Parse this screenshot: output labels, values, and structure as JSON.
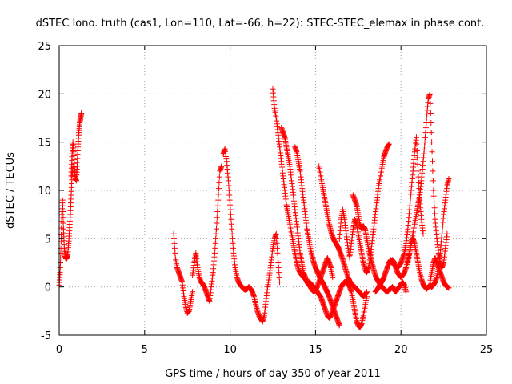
{
  "chart_data": {
    "type": "scatter",
    "title": "dSTEC Iono. truth (cas1, Lon=110, Lat=-66, h=22): STEC-STEC_elemax in phase cont.",
    "xlabel": "GPS time / hours of day 350 of year 2011",
    "ylabel": "dSTEC  / TECUs",
    "xlim": [
      0,
      25
    ],
    "ylim": [
      -5,
      25
    ],
    "xticks": [
      "0",
      "5",
      "10",
      "15",
      "20",
      "25"
    ],
    "yticks": [
      "-5",
      "0",
      "5",
      "10",
      "15",
      "20",
      "25"
    ],
    "grid": true,
    "marker": "+",
    "marker_color": "#ff0000",
    "series": [
      {
        "name": "",
        "x": [
          0.0,
          0.05,
          0.1,
          0.15,
          0.2,
          0.25,
          0.3,
          0.35,
          0.4,
          0.45,
          0.5,
          0.55,
          0.6,
          0.65,
          0.7,
          0.75,
          0.8
        ],
        "y": [
          0.2,
          1.5,
          4.0,
          7.5,
          9.0,
          6.0,
          4.0,
          3.2,
          2.9,
          3.0,
          3.4,
          4.5,
          5.8,
          7.5,
          9.5,
          11.5,
          12.5
        ]
      },
      {
        "name": "",
        "x": [
          0.7,
          0.75,
          0.8,
          0.85,
          0.9,
          0.95,
          1.0,
          1.05,
          1.1,
          1.15,
          1.2,
          1.25,
          1.3
        ],
        "y": [
          11.5,
          13.5,
          15.0,
          14.0,
          12.0,
          11.3,
          11.0,
          12.5,
          14.5,
          16.0,
          17.0,
          17.5,
          18.0
        ]
      },
      {
        "name": "",
        "x": [
          6.7,
          6.8,
          6.9,
          7.0,
          7.1,
          7.2,
          7.3,
          7.4,
          7.5,
          7.6,
          7.7,
          7.8
        ],
        "y": [
          5.5,
          3.0,
          2.0,
          1.5,
          1.0,
          0.5,
          -1.0,
          -2.0,
          -2.7,
          -2.5,
          -1.5,
          -0.5
        ]
      },
      {
        "name": "",
        "x": [
          7.8,
          7.9,
          8.0,
          8.1,
          8.2,
          8.3,
          8.4,
          8.5,
          8.6,
          8.7,
          8.8,
          8.9,
          9.0,
          9.1,
          9.2,
          9.3,
          9.4,
          9.5
        ],
        "y": [
          1.2,
          2.5,
          3.5,
          2.0,
          1.0,
          0.5,
          0.3,
          0.0,
          -0.5,
          -1.0,
          -1.5,
          0.0,
          1.5,
          3.5,
          6.0,
          9.0,
          12.0,
          12.5
        ]
      },
      {
        "name": "",
        "x": [
          9.6,
          9.7,
          9.8,
          9.9,
          10.0,
          10.1,
          10.2,
          10.3,
          10.4,
          10.5,
          10.6,
          10.7,
          10.8,
          10.9,
          11.0,
          11.1,
          11.2,
          11.3,
          11.4,
          11.5,
          11.6,
          11.7,
          11.8,
          11.9,
          12.0,
          12.1,
          12.2,
          12.3,
          12.4,
          12.5,
          12.6,
          12.7,
          12.8,
          12.9
        ],
        "y": [
          13.8,
          14.3,
          13.0,
          11.0,
          8.5,
          6.0,
          3.5,
          2.0,
          1.0,
          0.5,
          0.2,
          0.0,
          -0.2,
          -0.3,
          -0.2,
          0.0,
          -0.2,
          -0.5,
          -1.0,
          -1.8,
          -2.5,
          -3.0,
          -3.3,
          -3.6,
          -3.0,
          -1.5,
          0.0,
          1.2,
          2.5,
          4.0,
          5.0,
          5.5,
          3.0,
          0.5
        ]
      },
      {
        "name": "",
        "x": [
          12.5,
          12.6,
          12.7,
          12.8,
          12.9,
          13.0,
          13.1,
          13.2,
          13.3,
          13.4,
          13.5,
          13.6,
          13.7,
          13.8,
          13.9,
          14.0,
          14.1,
          14.2,
          14.3,
          14.4,
          14.5,
          14.6,
          14.7,
          14.8,
          14.9,
          15.0,
          15.1,
          15.2,
          15.3,
          15.4,
          15.5,
          15.6,
          15.7,
          15.8,
          15.9,
          16.0,
          16.1,
          16.2,
          16.3,
          16.4,
          16.5,
          16.6,
          16.7,
          16.8,
          16.9,
          17.0,
          17.1,
          17.2,
          17.3,
          17.4,
          17.5,
          17.6,
          17.7,
          17.8,
          17.9,
          18.0
        ],
        "y": [
          20.5,
          18.5,
          17.5,
          16.0,
          14.5,
          13.0,
          11.5,
          10.0,
          8.5,
          7.5,
          6.5,
          5.5,
          4.5,
          3.5,
          2.5,
          1.8,
          1.5,
          1.2,
          1.0,
          0.8,
          0.6,
          0.5,
          0.4,
          0.2,
          0.0,
          -0.2,
          -0.5,
          -0.8,
          -1.0,
          -1.5,
          -2.0,
          -2.5,
          -3.0,
          -3.2,
          -3.0,
          -2.5,
          -2.0,
          -1.5,
          -1.0,
          -0.5,
          0.0,
          0.3,
          0.5,
          0.5,
          0.3,
          0.0,
          -0.5,
          -1.5,
          -2.5,
          -3.5,
          -4.0,
          -4.2,
          -3.8,
          -3.0,
          -2.0,
          -1.0
        ]
      },
      {
        "name": "",
        "x": [
          13.0,
          13.1,
          13.2,
          13.3,
          13.4,
          13.5,
          13.6,
          13.7,
          13.8,
          13.9,
          14.0,
          14.1,
          14.2,
          14.3,
          14.4,
          14.5,
          14.6,
          14.7,
          14.8,
          14.9,
          15.0,
          15.1,
          15.2,
          15.3,
          15.4,
          15.5,
          15.6,
          15.7,
          15.8,
          15.9,
          16.0
        ],
        "y": [
          16.5,
          16.0,
          15.5,
          14.5,
          13.5,
          12.5,
          11.0,
          9.5,
          8.0,
          6.5,
          5.0,
          3.5,
          2.5,
          1.5,
          1.0,
          0.5,
          0.2,
          0.0,
          -0.3,
          -0.5,
          -0.3,
          0.0,
          0.5,
          1.0,
          1.5,
          2.0,
          2.5,
          3.0,
          2.5,
          2.0,
          1.0
        ]
      },
      {
        "name": "",
        "x": [
          13.8,
          13.9,
          14.0,
          14.1,
          14.2,
          14.3,
          14.4,
          14.5,
          14.6,
          14.7,
          14.8,
          14.9,
          15.0,
          15.1,
          15.2,
          15.3,
          15.4,
          15.5,
          15.6,
          15.7,
          15.8,
          15.9,
          16.0,
          16.1,
          16.2,
          16.3,
          16.4
        ],
        "y": [
          14.5,
          14.0,
          13.0,
          12.0,
          10.5,
          9.0,
          7.5,
          6.0,
          5.0,
          4.0,
          3.2,
          2.5,
          2.0,
          1.6,
          1.2,
          0.8,
          0.5,
          0.2,
          -0.2,
          -0.6,
          -1.0,
          -1.5,
          -2.0,
          -2.5,
          -3.0,
          -3.5,
          -4.0
        ]
      },
      {
        "name": "",
        "x": [
          15.2,
          15.3,
          15.4,
          15.5,
          15.6,
          15.7,
          15.8,
          15.9,
          16.0,
          16.1,
          16.2,
          16.3,
          16.4,
          16.5,
          16.6,
          16.7,
          16.8,
          16.9,
          17.0,
          17.1,
          17.2,
          17.3,
          17.4,
          17.5,
          17.6,
          17.7,
          17.8,
          17.9,
          18.0
        ],
        "y": [
          12.5,
          11.5,
          10.5,
          9.5,
          8.5,
          7.5,
          6.5,
          5.8,
          5.2,
          4.8,
          4.5,
          4.2,
          3.8,
          3.3,
          2.8,
          2.2,
          1.6,
          1.0,
          0.6,
          0.3,
          0.1,
          0.0,
          -0.2,
          -0.4,
          -0.6,
          -0.8,
          -1.0,
          -0.8,
          -0.5
        ]
      },
      {
        "name": "",
        "x": [
          16.4,
          16.5,
          16.6,
          16.7,
          16.8,
          16.9,
          17.0,
          17.1,
          17.2,
          17.3,
          17.4,
          17.5,
          17.6,
          17.7,
          17.8,
          17.9,
          18.0,
          18.1,
          18.2,
          18.3,
          18.4,
          18.5,
          18.6,
          18.7,
          18.8,
          18.9,
          19.0,
          19.1,
          19.2,
          19.3
        ],
        "y": [
          5.0,
          7.0,
          8.0,
          7.0,
          5.5,
          4.0,
          3.0,
          4.5,
          6.0,
          7.0,
          6.5,
          5.5,
          4.5,
          3.5,
          2.5,
          1.8,
          1.5,
          2.0,
          3.0,
          4.5,
          6.0,
          7.5,
          9.0,
          10.5,
          11.5,
          12.5,
          13.5,
          14.0,
          14.5,
          14.8
        ]
      },
      {
        "name": "",
        "x": [
          17.2,
          17.3,
          17.4,
          17.5,
          17.6,
          17.7,
          17.8,
          17.9,
          18.0,
          18.1,
          18.2,
          18.3,
          18.4,
          18.5,
          18.6,
          18.7,
          18.8,
          18.9,
          19.0,
          19.1,
          19.2,
          19.3,
          19.4,
          19.5,
          19.6,
          19.7,
          19.8,
          19.9,
          20.0,
          20.1,
          20.2,
          20.3
        ],
        "y": [
          9.5,
          9.0,
          8.5,
          7.5,
          6.5,
          6.0,
          6.3,
          6.0,
          5.0,
          4.0,
          3.2,
          2.5,
          1.8,
          1.2,
          0.8,
          0.5,
          0.2,
          0.0,
          -0.2,
          -0.4,
          -0.5,
          -0.3,
          -0.2,
          0.0,
          -0.3,
          -0.5,
          -0.2,
          0.0,
          0.3,
          0.5,
          0.2,
          -0.5
        ]
      },
      {
        "name": "",
        "x": [
          18.5,
          18.6,
          18.7,
          18.8,
          18.9,
          19.0,
          19.1,
          19.2,
          19.3,
          19.4,
          19.5,
          19.6,
          19.7,
          19.8,
          19.9,
          20.0,
          20.1,
          20.2,
          20.3,
          20.4,
          20.5,
          20.6,
          20.7,
          20.8,
          20.9,
          21.0,
          21.1,
          21.2,
          21.3
        ],
        "y": [
          -0.5,
          -0.3,
          0.0,
          0.3,
          0.6,
          1.0,
          1.5,
          2.0,
          2.5,
          2.8,
          2.6,
          2.3,
          2.1,
          2.0,
          2.2,
          2.5,
          3.0,
          3.5,
          4.5,
          6.0,
          8.0,
          10.0,
          12.0,
          14.0,
          15.5,
          12.0,
          9.0,
          7.0,
          5.5
        ]
      },
      {
        "name": "",
        "x": [
          20.4,
          20.5,
          20.6,
          20.7,
          20.8,
          20.9,
          21.0,
          21.1,
          21.2,
          21.3,
          21.4,
          21.5,
          21.6,
          21.7,
          21.8,
          21.9,
          22.0,
          22.1,
          22.2,
          22.3,
          22.4,
          22.5,
          22.6,
          22.7,
          22.8
        ],
        "y": [
          2.5,
          3.5,
          4.5,
          5.0,
          4.5,
          3.5,
          2.5,
          1.5,
          0.8,
          0.3,
          0.0,
          -0.2,
          0.0,
          0.2,
          0.0,
          0.2,
          0.5,
          1.0,
          2.0,
          3.5,
          5.5,
          7.5,
          9.0,
          10.5,
          11.2
        ]
      },
      {
        "name": "",
        "x": [
          19.5,
          19.6,
          19.7,
          19.8,
          19.9,
          20.0,
          20.1,
          20.2,
          20.3,
          20.4,
          20.5,
          20.6,
          20.7,
          20.8,
          20.9,
          21.0,
          21.1,
          21.2,
          21.3,
          21.4,
          21.5,
          21.6,
          21.7,
          21.8,
          21.9,
          22.0,
          22.1,
          22.2,
          22.3,
          22.4,
          22.5,
          22.6,
          22.7
        ],
        "y": [
          2.8,
          2.5,
          2.0,
          1.5,
          1.2,
          1.0,
          1.2,
          1.5,
          2.0,
          2.8,
          3.5,
          4.5,
          5.5,
          6.5,
          7.5,
          8.5,
          9.5,
          11.0,
          13.0,
          15.0,
          17.5,
          19.5,
          20.0,
          15.0,
          10.0,
          7.0,
          5.0,
          3.5,
          2.5,
          2.0,
          2.5,
          4.0,
          5.5
        ]
      },
      {
        "name": "",
        "x": [
          21.7,
          21.8,
          21.9,
          22.0,
          22.1,
          22.2,
          22.3,
          22.4,
          22.5,
          22.6,
          22.7,
          22.8
        ],
        "y": [
          0.5,
          1.5,
          2.5,
          3.0,
          2.5,
          2.0,
          1.5,
          1.0,
          0.5,
          0.2,
          0.0,
          -0.1
        ]
      }
    ]
  }
}
